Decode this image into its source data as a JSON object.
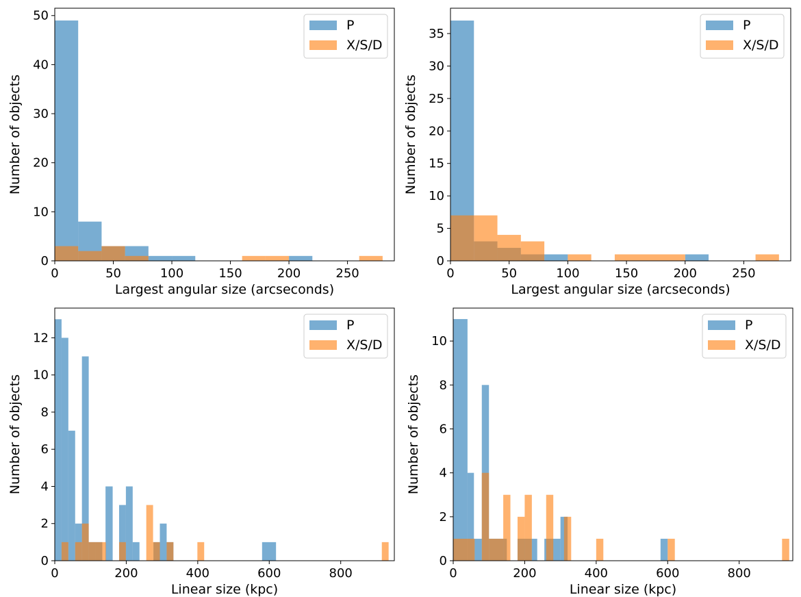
{
  "colors": {
    "P": "#1f77b4",
    "XSD": "#ff7f0e",
    "alpha": 0.6
  },
  "chart_data": [
    {
      "type": "bar",
      "panel": "top-left",
      "xlabel": "Largest angular size (arcseconds)",
      "ylabel": "Number of objects",
      "xlim": [
        0,
        290
      ],
      "ylim": [
        0,
        51.5
      ],
      "xticks": [
        0,
        50,
        100,
        150,
        200,
        250
      ],
      "yticks": [
        0,
        10,
        20,
        30,
        40,
        50
      ],
      "legend": {
        "placement": "top-right"
      },
      "series": [
        {
          "name": "P",
          "color": "#1f77b4",
          "bins": [
            [
              0,
              20,
              49
            ],
            [
              20,
              40,
              8
            ],
            [
              40,
              60,
              3
            ],
            [
              60,
              80,
              3
            ],
            [
              80,
              100,
              1
            ],
            [
              100,
              120,
              1
            ],
            [
              200,
              220,
              1
            ]
          ]
        },
        {
          "name": "X/S/D",
          "color": "#ff7f0e",
          "bins": [
            [
              0,
              20,
              3
            ],
            [
              20,
              40,
              2
            ],
            [
              40,
              60,
              3
            ],
            [
              60,
              80,
              1
            ],
            [
              160,
              180,
              1
            ],
            [
              180,
              200,
              1
            ],
            [
              260,
              280,
              1
            ]
          ]
        }
      ]
    },
    {
      "type": "bar",
      "panel": "top-right",
      "xlabel": "Largest angular size (arcseconds)",
      "ylabel": "Number of objects",
      "xlim": [
        0,
        290
      ],
      "ylim": [
        0,
        38.9
      ],
      "xticks": [
        0,
        50,
        100,
        150,
        200,
        250
      ],
      "yticks": [
        0,
        5,
        10,
        15,
        20,
        25,
        30,
        35
      ],
      "legend": {
        "placement": "top-right"
      },
      "series": [
        {
          "name": "P",
          "color": "#1f77b4",
          "bins": [
            [
              0,
              20,
              37
            ],
            [
              20,
              40,
              3
            ],
            [
              40,
              60,
              2
            ],
            [
              60,
              80,
              1
            ],
            [
              80,
              100,
              1
            ],
            [
              200,
              220,
              1
            ]
          ]
        },
        {
          "name": "X/S/D",
          "color": "#ff7f0e",
          "bins": [
            [
              0,
              20,
              7
            ],
            [
              20,
              40,
              7
            ],
            [
              40,
              60,
              4
            ],
            [
              60,
              80,
              3
            ],
            [
              100,
              120,
              1
            ],
            [
              140,
              200,
              1
            ],
            [
              260,
              280,
              1
            ]
          ]
        }
      ]
    },
    {
      "type": "bar",
      "panel": "bottom-left",
      "xlabel": "Linear size (kpc)",
      "ylabel": "Number of objects",
      "xlim": [
        0,
        950
      ],
      "ylim": [
        0,
        13.6
      ],
      "xticks": [
        0,
        200,
        400,
        600,
        800
      ],
      "yticks": [
        0,
        2,
        4,
        6,
        8,
        10,
        12
      ],
      "legend": {
        "placement": "top-right"
      },
      "series": [
        {
          "name": "P",
          "color": "#1f77b4",
          "bins": [
            [
              0,
              19,
              13
            ],
            [
              19,
              38,
              12
            ],
            [
              38,
              57,
              7
            ],
            [
              57,
              76,
              2
            ],
            [
              76,
              95,
              11
            ],
            [
              95,
              114,
              1
            ],
            [
              114,
              133,
              1
            ],
            [
              133,
              152,
              0
            ],
            [
              142,
              162,
              4
            ],
            [
              180,
              199,
              3
            ],
            [
              199,
              218,
              4
            ],
            [
              218,
              237,
              1
            ],
            [
              276,
              294,
              1
            ],
            [
              294,
              313,
              2
            ],
            [
              313,
              332,
              1
            ],
            [
              580,
              619,
              1
            ]
          ]
        },
        {
          "name": "X/S/D",
          "color": "#ff7f0e",
          "bins": [
            [
              19,
              38,
              1
            ],
            [
              57,
              76,
              1
            ],
            [
              76,
              95,
              2
            ],
            [
              95,
              114,
              1
            ],
            [
              114,
              133,
              1
            ],
            [
              133,
              143,
              1
            ],
            [
              180,
              199,
              1
            ],
            [
              256,
              275,
              3
            ],
            [
              275,
              294,
              1
            ],
            [
              313,
              332,
              1
            ],
            [
              399,
              418,
              1
            ],
            [
              915,
              934,
              1
            ]
          ]
        }
      ]
    },
    {
      "type": "bar",
      "panel": "bottom-right",
      "xlabel": "Linear size (kpc)",
      "ylabel": "Number of objects",
      "xlim": [
        0,
        950
      ],
      "ylim": [
        0,
        11.5
      ],
      "xticks": [
        0,
        200,
        400,
        600,
        800
      ],
      "yticks": [
        0,
        2,
        4,
        6,
        8,
        10
      ],
      "legend": {
        "placement": "top-right"
      },
      "series": [
        {
          "name": "P",
          "color": "#1f77b4",
          "bins": [
            [
              0,
              40,
              11
            ],
            [
              40,
              58,
              4
            ],
            [
              58,
              80,
              1
            ],
            [
              80,
              100,
              8
            ],
            [
              100,
              150,
              1
            ],
            [
              180,
              220,
              1
            ],
            [
              220,
              235,
              1
            ],
            [
              255,
              275,
              1
            ],
            [
              275,
              300,
              1
            ],
            [
              300,
              320,
              2
            ],
            [
              580,
              600,
              1
            ]
          ]
        },
        {
          "name": "X/S/D",
          "color": "#ff7f0e",
          "bins": [
            [
              0,
              60,
              1
            ],
            [
              80,
              100,
              4
            ],
            [
              100,
              140,
              1
            ],
            [
              140,
              160,
              3
            ],
            [
              180,
              200,
              2
            ],
            [
              200,
              220,
              3
            ],
            [
              260,
              280,
              3
            ],
            [
              310,
              330,
              2
            ],
            [
              400,
              420,
              1
            ],
            [
              600,
              620,
              1
            ],
            [
              920,
              940,
              1
            ]
          ]
        }
      ]
    }
  ]
}
